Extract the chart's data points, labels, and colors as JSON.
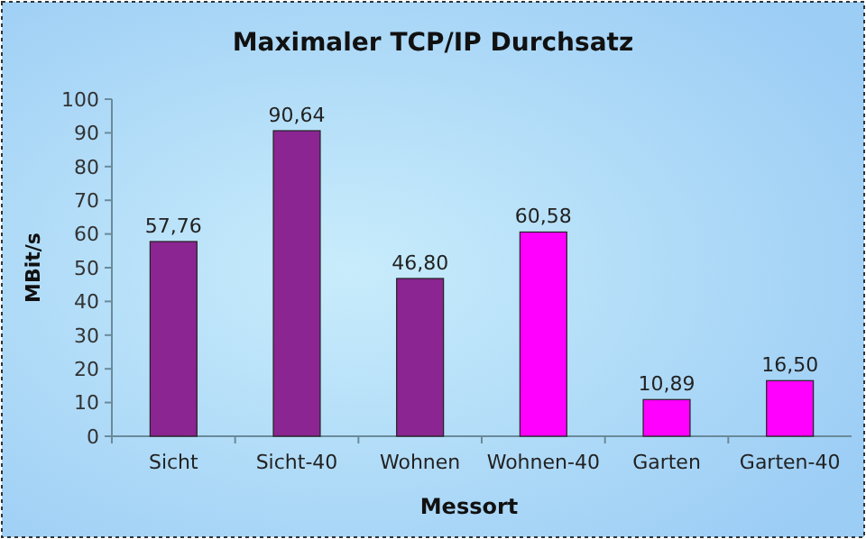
{
  "chart_data": {
    "type": "bar",
    "title": "Maximaler TCP/IP Durchsatz",
    "xlabel": "Messort",
    "ylabel": "MBit/s",
    "categories": [
      "Sicht",
      "Sicht-40",
      "Wohnen",
      "Wohnen-40",
      "Garten",
      "Garten-40"
    ],
    "values": [
      57.76,
      90.64,
      46.8,
      60.58,
      10.89,
      16.5
    ],
    "value_labels": [
      "57,76",
      "90,64",
      "46,80",
      "60,58",
      "10,89",
      "16,50"
    ],
    "colors": [
      "#8b2591",
      "#8b2591",
      "#8b2591",
      "#ff00ff",
      "#ff00ff",
      "#ff00ff"
    ],
    "ylim": [
      0,
      100
    ],
    "yticks": [
      0,
      10,
      20,
      30,
      40,
      50,
      60,
      70,
      80,
      90,
      100
    ],
    "grid": false
  }
}
